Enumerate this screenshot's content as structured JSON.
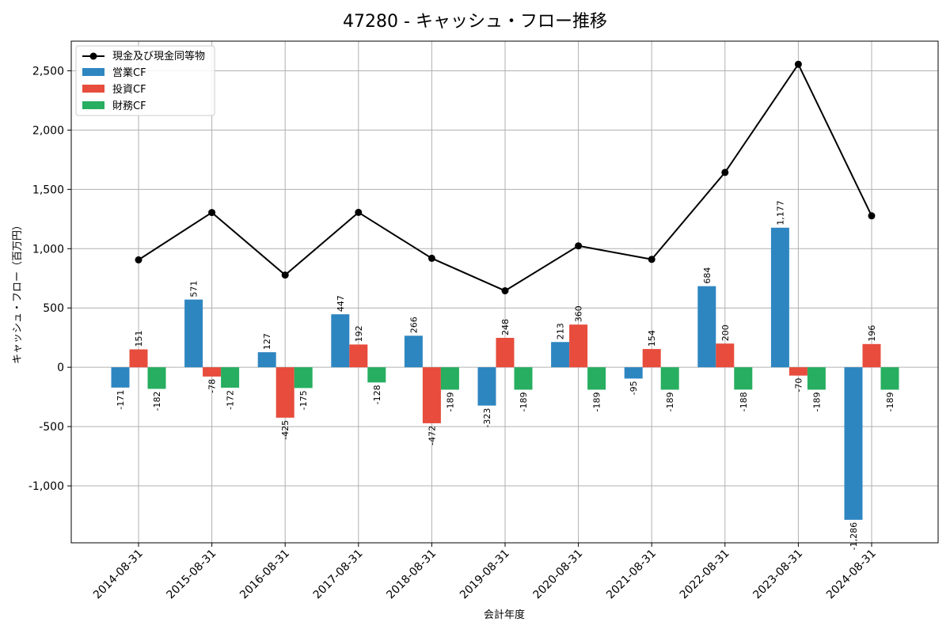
{
  "chart_data": {
    "type": "bar",
    "title": "47280 - キャッシュ・フロー推移",
    "xlabel": "会計年度",
    "ylabel": "キャッシュ・フロー（百万円）",
    "categories": [
      "2014-08-31",
      "2015-08-31",
      "2016-08-31",
      "2017-08-31",
      "2018-08-31",
      "2019-08-31",
      "2020-08-31",
      "2021-08-31",
      "2022-08-31",
      "2023-08-31",
      "2024-08-31"
    ],
    "ylim": [
      -1480,
      2750
    ],
    "yticks": [
      -1000,
      -500,
      0,
      500,
      1000,
      1500,
      2000,
      2500
    ],
    "ytick_labels": [
      "-1,000",
      "-500",
      "0",
      "500",
      "1,000",
      "1,500",
      "2,000",
      "2,500"
    ],
    "grid": true,
    "legend_position": "top-left",
    "series": [
      {
        "name": "営業CF",
        "color": "#2e86c1",
        "values": [
          -171,
          571,
          127,
          447,
          266,
          -323,
          213,
          -95,
          684,
          1177,
          -1286
        ],
        "labels": [
          "-171",
          "571",
          "127",
          "447",
          "266",
          "-323",
          "213",
          "-95",
          "684",
          "1,177",
          "-1,286"
        ]
      },
      {
        "name": "投資CF",
        "color": "#e74c3c",
        "values": [
          151,
          -78,
          -425,
          192,
          -472,
          248,
          360,
          154,
          200,
          -70,
          196
        ],
        "labels": [
          "151",
          "-78",
          "-425",
          "192",
          "-472",
          "248",
          "360",
          "154",
          "200",
          "-70",
          "196"
        ]
      },
      {
        "name": "財務CF",
        "color": "#27ae60",
        "values": [
          -182,
          -172,
          -175,
          -128,
          -189,
          -189,
          -189,
          -189,
          -188,
          -189,
          -189
        ],
        "labels": [
          "-182",
          "-172",
          "-175",
          "-128",
          "-189",
          "-189",
          "-189",
          "-189",
          "-188",
          "-189",
          "-189"
        ]
      }
    ],
    "line": {
      "name": "現金及び現金同等物",
      "color": "#000000",
      "values": [
        906,
        1305,
        778,
        1306,
        919,
        645,
        1024,
        910,
        1643,
        2555,
        1277
      ]
    }
  }
}
